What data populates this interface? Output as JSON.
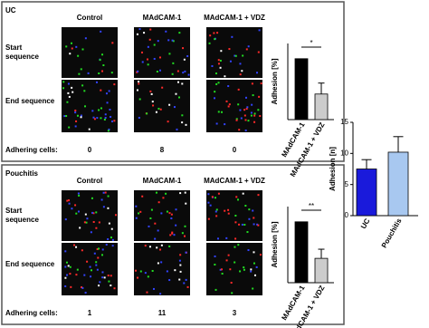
{
  "panels": [
    {
      "title": "UC",
      "columns": [
        "Control",
        "MAdCAM-1",
        "MAdCAM-1 + VDZ"
      ],
      "rows": [
        "Start sequence",
        "End sequence"
      ],
      "adhering_label": "Adhering cells:",
      "adhering_values": [
        0,
        8,
        0
      ],
      "chart": {
        "type": "bar",
        "ylabel": "Adhesion [%]",
        "categories": [
          "MAdCAM-1",
          "MAdCAM-1 + VDZ"
        ],
        "values": [
          100,
          42
        ],
        "errors": [
          null,
          18
        ],
        "colors": [
          "#000000",
          "#cccccc"
        ],
        "ylim": [
          0,
          125
        ],
        "significance": "*"
      }
    },
    {
      "title": "Pouchitis",
      "columns": [
        "Control",
        "MAdCAM-1",
        "MAdCAM-1 + VDZ"
      ],
      "rows": [
        "Start sequence",
        "End sequence"
      ],
      "adhering_label": "Adhering cells:",
      "adhering_values": [
        1,
        11,
        3
      ],
      "chart": {
        "type": "bar",
        "ylabel": "Adhesion [%]",
        "categories": [
          "MAdCAM-1",
          "MAdCAM-1 + VDZ"
        ],
        "values": [
          100,
          40
        ],
        "errors": [
          null,
          15
        ],
        "colors": [
          "#000000",
          "#cccccc"
        ],
        "ylim": [
          0,
          125
        ],
        "significance": "**"
      }
    }
  ],
  "summary_chart": {
    "type": "bar",
    "ylabel": "Adhesion [n]",
    "categories": [
      "UC",
      "Pouchitis"
    ],
    "values": [
      7.5,
      10.2
    ],
    "errors": [
      1.5,
      2.5
    ],
    "colors": [
      "#1a1adb",
      "#a8c8f0"
    ],
    "ylim": [
      0,
      15
    ],
    "yticks": [
      0,
      5,
      10,
      15
    ]
  }
}
